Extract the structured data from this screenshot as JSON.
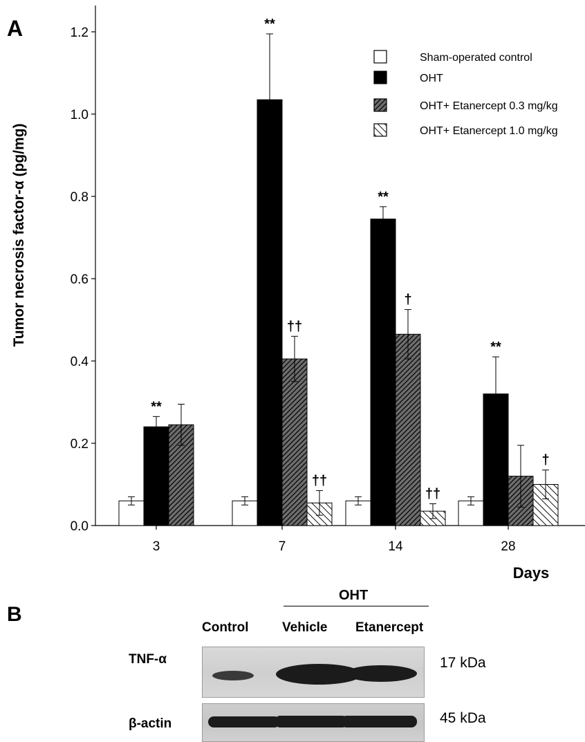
{
  "panel_a": {
    "label": "A",
    "chart_data": {
      "type": "bar",
      "ylabel": "Tumor necrosis factor-α (pg/mg)",
      "xlabel": "Days",
      "ylim": [
        0,
        1.2
      ],
      "yticks": [
        "0.0",
        "0.2",
        "0.4",
        "0.6",
        "0.8",
        "1.0",
        "1.2"
      ],
      "categories": [
        "3",
        "7",
        "14",
        "28"
      ],
      "legend_position": "top-right",
      "series": [
        {
          "name": "Sham-operated control",
          "fill": "white",
          "values": [
            0.06,
            0.06,
            0.06,
            0.06
          ],
          "errors": [
            0.01,
            0.01,
            0.01,
            0.01
          ],
          "marks": [
            "",
            "",
            "",
            ""
          ]
        },
        {
          "name": "OHT",
          "fill": "black",
          "values": [
            0.24,
            1.035,
            0.745,
            0.32
          ],
          "errors": [
            0.025,
            0.16,
            0.03,
            0.09
          ],
          "marks": [
            "**",
            "**",
            "**",
            "**"
          ]
        },
        {
          "name": "OHT+ Etanercept 0.3 mg/kg",
          "fill": "dense-hatch",
          "values": [
            0.245,
            0.405,
            0.465,
            0.12
          ],
          "errors": [
            0.05,
            0.055,
            0.06,
            0.075
          ],
          "marks": [
            "",
            "††",
            "†",
            ""
          ]
        },
        {
          "name": "OHT+ Etanercept 1.0 mg/kg",
          "fill": "sparse-hatch",
          "values": [
            null,
            0.055,
            0.035,
            0.1
          ],
          "errors": [
            null,
            0.03,
            0.018,
            0.035
          ],
          "marks": [
            "",
            "††",
            "††",
            "†"
          ]
        }
      ]
    }
  },
  "panel_b": {
    "label": "B",
    "group_label": "OHT",
    "lanes": [
      "Control",
      "Vehicle",
      "Etanercept"
    ],
    "rows": [
      {
        "label": "TNF-α",
        "size": "17 kDa"
      },
      {
        "label": "β-actin",
        "size": "45 kDa"
      }
    ]
  },
  "colors": {
    "bar_black": "#000000",
    "bar_white": "#ffffff",
    "axis": "#000000"
  }
}
